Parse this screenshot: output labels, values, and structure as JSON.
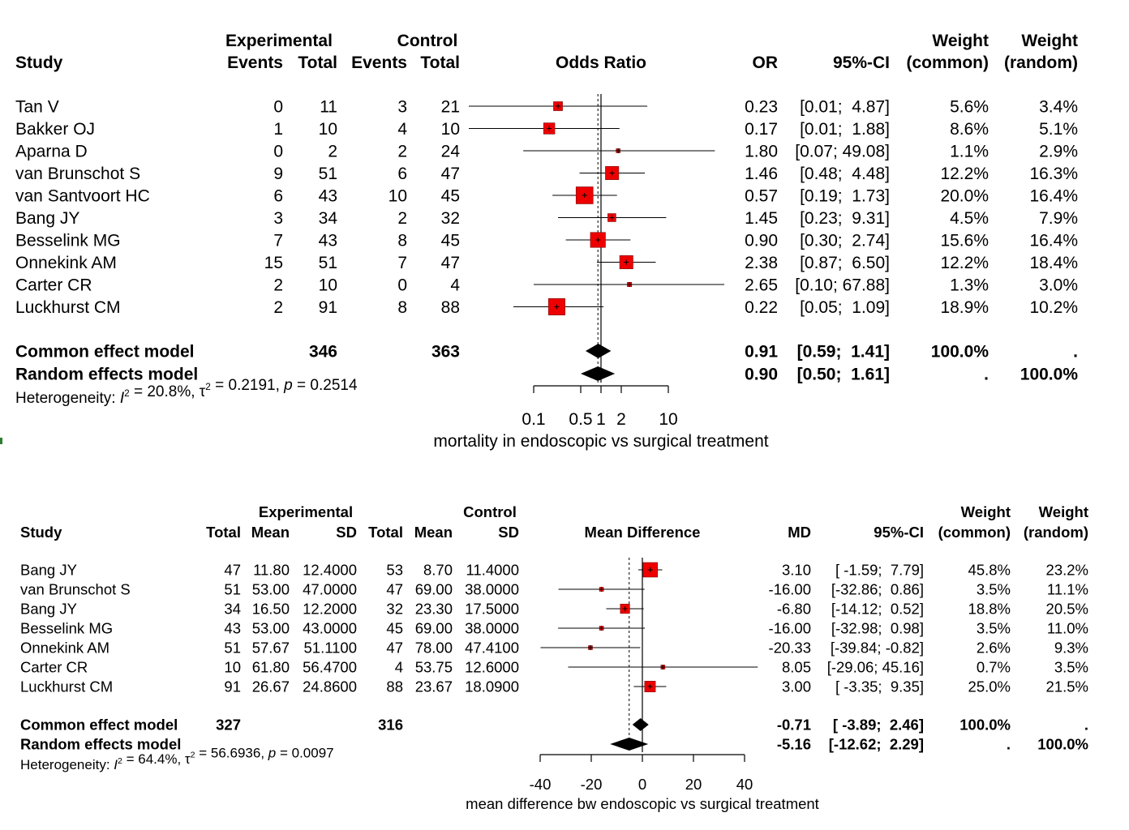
{
  "chart_data": [
    {
      "type": "forest",
      "headers": {
        "study": "Study",
        "exp_group": "Experimental",
        "ctrl_group": "Control",
        "events": "Events",
        "total": "Total",
        "effect": "Odds Ratio",
        "est": "OR",
        "ci": "95%-CI",
        "weight": "Weight",
        "w_common": "(common)",
        "w_random": "(random)"
      },
      "studies": [
        {
          "name": "Tan V",
          "exp_events": "0",
          "exp_total": "11",
          "ctrl_events": "3",
          "ctrl_total": "21",
          "est": 0.23,
          "lo": 0.01,
          "hi": 4.87,
          "est_s": "0.23",
          "ci_s": "[0.01;  4.87]",
          "w_common": 5.6,
          "w_common_s": "5.6%",
          "w_random_s": "3.4%"
        },
        {
          "name": "Bakker OJ",
          "exp_events": "1",
          "exp_total": "10",
          "ctrl_events": "4",
          "ctrl_total": "10",
          "est": 0.17,
          "lo": 0.01,
          "hi": 1.88,
          "est_s": "0.17",
          "ci_s": "[0.01;  1.88]",
          "w_common": 8.6,
          "w_common_s": "8.6%",
          "w_random_s": "5.1%"
        },
        {
          "name": "Aparna D",
          "exp_events": "0",
          "exp_total": "2",
          "ctrl_events": "2",
          "ctrl_total": "24",
          "est": 1.8,
          "lo": 0.07,
          "hi": 49.08,
          "est_s": "1.80",
          "ci_s": "[0.07; 49.08]",
          "w_common": 1.1,
          "w_common_s": "1.1%",
          "w_random_s": "2.9%"
        },
        {
          "name": "van Brunschot S",
          "exp_events": "9",
          "exp_total": "51",
          "ctrl_events": "6",
          "ctrl_total": "47",
          "est": 1.46,
          "lo": 0.48,
          "hi": 4.48,
          "est_s": "1.46",
          "ci_s": "[0.48;  4.48]",
          "w_common": 12.2,
          "w_common_s": "12.2%",
          "w_random_s": "16.3%"
        },
        {
          "name": "van Santvoort HC",
          "exp_events": "6",
          "exp_total": "43",
          "ctrl_events": "10",
          "ctrl_total": "45",
          "est": 0.57,
          "lo": 0.19,
          "hi": 1.73,
          "est_s": "0.57",
          "ci_s": "[0.19;  1.73]",
          "w_common": 20.0,
          "w_common_s": "20.0%",
          "w_random_s": "16.4%"
        },
        {
          "name": "Bang JY",
          "exp_events": "3",
          "exp_total": "34",
          "ctrl_events": "2",
          "ctrl_total": "32",
          "est": 1.45,
          "lo": 0.23,
          "hi": 9.31,
          "est_s": "1.45",
          "ci_s": "[0.23;  9.31]",
          "w_common": 4.5,
          "w_common_s": "4.5%",
          "w_random_s": "7.9%"
        },
        {
          "name": "Besselink MG",
          "exp_events": "7",
          "exp_total": "43",
          "ctrl_events": "8",
          "ctrl_total": "45",
          "est": 0.9,
          "lo": 0.3,
          "hi": 2.74,
          "est_s": "0.90",
          "ci_s": "[0.30;  2.74]",
          "w_common": 15.6,
          "w_common_s": "15.6%",
          "w_random_s": "16.4%"
        },
        {
          "name": "Onnekink AM",
          "exp_events": "15",
          "exp_total": "51",
          "ctrl_events": "7",
          "ctrl_total": "47",
          "est": 2.38,
          "lo": 0.87,
          "hi": 6.5,
          "est_s": "2.38",
          "ci_s": "[0.87;  6.50]",
          "w_common": 12.2,
          "w_common_s": "12.2%",
          "w_random_s": "18.4%"
        },
        {
          "name": "Carter CR",
          "exp_events": "2",
          "exp_total": "10",
          "ctrl_events": "0",
          "ctrl_total": "4",
          "est": 2.65,
          "lo": 0.1,
          "hi": 67.88,
          "est_s": "2.65",
          "ci_s": "[0.10; 67.88]",
          "w_common": 1.3,
          "w_common_s": "1.3%",
          "w_random_s": "3.0%"
        },
        {
          "name": "Luckhurst CM",
          "exp_events": "2",
          "exp_total": "91",
          "ctrl_events": "8",
          "ctrl_total": "88",
          "est": 0.22,
          "lo": 0.05,
          "hi": 1.09,
          "est_s": "0.22",
          "ci_s": "[0.05;  1.09]",
          "w_common": 18.9,
          "w_common_s": "18.9%",
          "w_random_s": "10.2%"
        }
      ],
      "common": {
        "label": "Common effect model",
        "exp_total": "346",
        "ctrl_total": "363",
        "est": 0.91,
        "lo": 0.59,
        "hi": 1.41,
        "est_s": "0.91",
        "ci_s": "[0.59;  1.41]",
        "w_common_s": "100.0%",
        "w_random_s": "."
      },
      "random": {
        "label": "Random effects model",
        "est": 0.9,
        "lo": 0.5,
        "hi": 1.61,
        "est_s": "0.90",
        "ci_s": "[0.50;  1.61]",
        "w_common_s": ".",
        "w_random_s": "100.0%"
      },
      "heterogeneity": {
        "prefix": "Heterogeneity: ",
        "i2": "I",
        "i2_val": " = 20.8%, ",
        "tau": "τ",
        "tau_val": " = 0.2191, ",
        "p": "p",
        "p_val": " = 0.2514"
      },
      "scale": "log",
      "null_value": 1,
      "ticks": [
        0.1,
        0.5,
        1,
        2,
        10
      ],
      "tick_labels": [
        "0.1",
        "0.5",
        "1",
        "2",
        "10"
      ],
      "xlabel": "mortality in endoscopic vs surgical treatment"
    },
    {
      "type": "forest",
      "headers": {
        "study": "Study",
        "exp_group": "Experimental",
        "ctrl_group": "Control",
        "total": "Total",
        "mean": "Mean",
        "sd": "SD",
        "effect": "Mean Difference",
        "est": "MD",
        "ci": "95%-CI",
        "weight": "Weight",
        "w_common": "(common)",
        "w_random": "(random)"
      },
      "studies": [
        {
          "name": "Bang JY",
          "exp_total": "47",
          "exp_mean": "11.80",
          "exp_sd": "12.4000",
          "ctrl_total": "53",
          "ctrl_mean": "8.70",
          "ctrl_sd": "11.4000",
          "est": 3.1,
          "lo": -1.59,
          "hi": 7.79,
          "est_s": "3.10",
          "ci_s": "[ -1.59;  7.79]",
          "w_common": 45.8,
          "w_common_s": "45.8%",
          "w_random_s": "23.2%"
        },
        {
          "name": "van Brunschot S",
          "exp_total": "51",
          "exp_mean": "53.00",
          "exp_sd": "47.0000",
          "ctrl_total": "47",
          "ctrl_mean": "69.00",
          "ctrl_sd": "38.0000",
          "est": -16.0,
          "lo": -32.86,
          "hi": 0.86,
          "est_s": "-16.00",
          "ci_s": "[-32.86;  0.86]",
          "w_common": 3.5,
          "w_common_s": "3.5%",
          "w_random_s": "11.1%"
        },
        {
          "name": "Bang JY",
          "exp_total": "34",
          "exp_mean": "16.50",
          "exp_sd": "12.2000",
          "ctrl_total": "32",
          "ctrl_mean": "23.30",
          "ctrl_sd": "17.5000",
          "est": -6.8,
          "lo": -14.12,
          "hi": 0.52,
          "est_s": "-6.80",
          "ci_s": "[-14.12;  0.52]",
          "w_common": 18.8,
          "w_common_s": "18.8%",
          "w_random_s": "20.5%"
        },
        {
          "name": "Besselink MG",
          "exp_total": "43",
          "exp_mean": "53.00",
          "exp_sd": "43.0000",
          "ctrl_total": "45",
          "ctrl_mean": "69.00",
          "ctrl_sd": "38.0000",
          "est": -16.0,
          "lo": -32.98,
          "hi": 0.98,
          "est_s": "-16.00",
          "ci_s": "[-32.98;  0.98]",
          "w_common": 3.5,
          "w_common_s": "3.5%",
          "w_random_s": "11.0%"
        },
        {
          "name": "Onnekink AM",
          "exp_total": "51",
          "exp_mean": "57.67",
          "exp_sd": "51.1100",
          "ctrl_total": "47",
          "ctrl_mean": "78.00",
          "ctrl_sd": "47.4100",
          "est": -20.33,
          "lo": -39.84,
          "hi": -0.82,
          "est_s": "-20.33",
          "ci_s": "[-39.84; -0.82]",
          "w_common": 2.6,
          "w_common_s": "2.6%",
          "w_random_s": "9.3%"
        },
        {
          "name": "Carter CR",
          "exp_total": "10",
          "exp_mean": "61.80",
          "exp_sd": "56.4700",
          "ctrl_total": "4",
          "ctrl_mean": "53.75",
          "ctrl_sd": "12.6000",
          "est": 8.05,
          "lo": -29.06,
          "hi": 45.16,
          "est_s": "8.05",
          "ci_s": "[-29.06; 45.16]",
          "w_common": 0.7,
          "w_common_s": "0.7%",
          "w_random_s": "3.5%"
        },
        {
          "name": "Luckhurst CM",
          "exp_total": "91",
          "exp_mean": "26.67",
          "exp_sd": "24.8600",
          "ctrl_total": "88",
          "ctrl_mean": "23.67",
          "ctrl_sd": "18.0900",
          "est": 3.0,
          "lo": -3.35,
          "hi": 9.35,
          "est_s": "3.00",
          "ci_s": "[ -3.35;  9.35]",
          "w_common": 25.0,
          "w_common_s": "25.0%",
          "w_random_s": "21.5%"
        }
      ],
      "common": {
        "label": "Common effect model",
        "exp_total": "327",
        "ctrl_total": "316",
        "est": -0.71,
        "lo": -3.89,
        "hi": 2.46,
        "est_s": "-0.71",
        "ci_s": "[ -3.89;  2.46]",
        "w_common_s": "100.0%",
        "w_random_s": "."
      },
      "random": {
        "label": "Random effects model",
        "est": -5.16,
        "lo": -12.62,
        "hi": 2.29,
        "est_s": "-5.16",
        "ci_s": "[-12.62;  2.29]",
        "w_common_s": ".",
        "w_random_s": "100.0%"
      },
      "heterogeneity": {
        "prefix": "Heterogeneity: ",
        "i2": "I",
        "i2_val": " = 64.4%, ",
        "tau": "τ",
        "tau_val": " = 56.6936, ",
        "p": "p",
        "p_val": " = 0.0097"
      },
      "scale": "linear",
      "null_value": 0,
      "ticks": [
        -40,
        -20,
        0,
        20,
        40
      ],
      "tick_labels": [
        "-40",
        "-20",
        "0",
        "20",
        "40"
      ],
      "xlabel": "mean difference bw endoscopic vs surgical treatment"
    }
  ],
  "colors": {
    "box": "#ee0000",
    "box_border": "#7a1010",
    "diamond": "#000000",
    "line": "#000000"
  }
}
